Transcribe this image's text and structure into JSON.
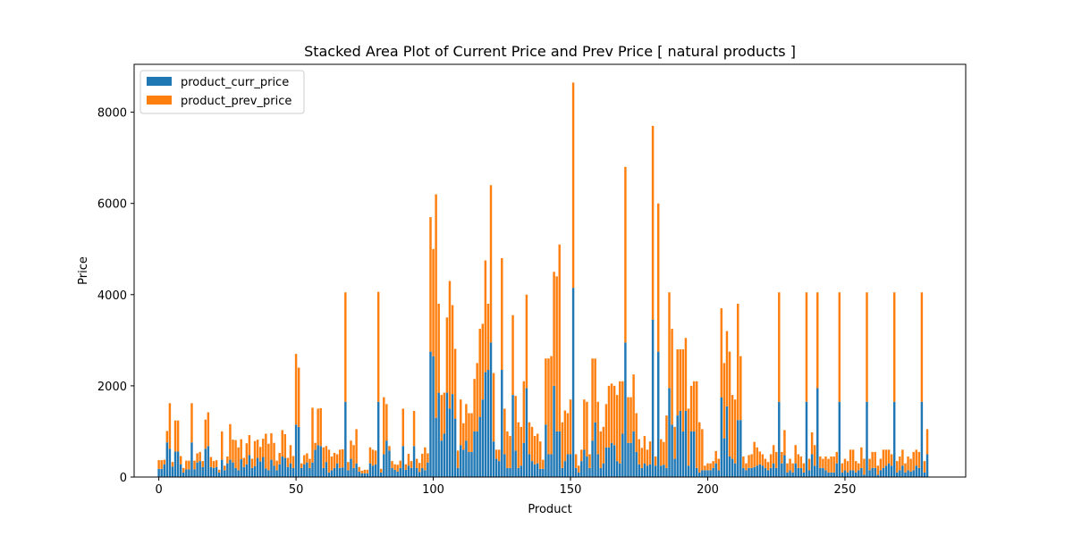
{
  "chart_data": {
    "type": "bar",
    "stacked": true,
    "title": "Stacked Area Plot of Current Price and Prev Price [ natural products ]",
    "xlabel": "Product",
    "ylabel": "Price",
    "xlim": [
      -9,
      294
    ],
    "ylim": [
      0,
      9050
    ],
    "xticks": [
      0,
      50,
      100,
      150,
      200,
      250
    ],
    "yticks": [
      0,
      2000,
      4000,
      6000,
      8000
    ],
    "grid": false,
    "legend": {
      "position": "top-left",
      "entries": [
        "product_curr_price",
        "product_prev_price"
      ]
    },
    "colors": {
      "product_curr_price": "#1f77b4",
      "product_prev_price": "#ff7f0e"
    },
    "x": [
      0,
      1,
      2,
      3,
      4,
      5,
      6,
      7,
      8,
      9,
      10,
      11,
      12,
      13,
      14,
      15,
      16,
      17,
      18,
      19,
      20,
      21,
      22,
      23,
      24,
      25,
      26,
      27,
      28,
      29,
      30,
      31,
      32,
      33,
      34,
      35,
      36,
      37,
      38,
      39,
      40,
      41,
      42,
      43,
      44,
      45,
      46,
      47,
      48,
      49,
      50,
      51,
      52,
      53,
      54,
      55,
      56,
      57,
      58,
      59,
      60,
      61,
      62,
      63,
      64,
      65,
      66,
      67,
      68,
      69,
      70,
      71,
      72,
      73,
      74,
      75,
      76,
      77,
      78,
      79,
      80,
      81,
      82,
      83,
      84,
      85,
      86,
      87,
      88,
      89,
      90,
      91,
      92,
      93,
      94,
      95,
      96,
      97,
      98,
      99,
      100,
      101,
      102,
      103,
      104,
      105,
      106,
      107,
      108,
      109,
      110,
      111,
      112,
      113,
      114,
      115,
      116,
      117,
      118,
      119,
      120,
      121,
      122,
      123,
      124,
      125,
      126,
      127,
      128,
      129,
      130,
      131,
      132,
      133,
      134,
      135,
      136,
      137,
      138,
      139,
      140,
      141,
      142,
      143,
      144,
      145,
      146,
      147,
      148,
      149,
      150,
      151,
      152,
      153,
      154,
      155,
      156,
      157,
      158,
      159,
      160,
      161,
      162,
      163,
      164,
      165,
      166,
      167,
      168,
      169,
      170,
      171,
      172,
      173,
      174,
      175,
      176,
      177,
      178,
      179,
      180,
      181,
      182,
      183,
      184,
      185,
      186,
      187,
      188,
      189,
      190,
      191,
      192,
      193,
      194,
      195,
      196,
      197,
      198,
      199,
      200,
      201,
      202,
      203,
      204,
      205,
      206,
      207,
      208,
      209,
      210,
      211,
      212,
      213,
      214,
      215,
      216,
      217,
      218,
      219,
      220,
      221,
      222,
      223,
      224,
      225,
      226,
      227,
      228,
      229,
      230,
      231,
      232,
      233,
      234,
      235,
      236,
      237,
      238,
      239,
      240,
      241,
      242,
      243,
      244,
      245,
      246,
      247,
      248,
      249,
      250,
      251,
      252,
      253,
      254,
      255,
      256,
      257,
      258,
      259,
      260,
      261,
      262,
      263,
      264,
      265,
      266,
      267,
      268,
      269,
      270,
      271,
      272,
      273,
      274,
      275,
      276,
      277,
      278,
      279,
      280
    ],
    "series": [
      {
        "name": "product_curr_price",
        "values": [
          180,
          180,
          280,
          760,
          620,
          230,
          560,
          560,
          280,
          100,
          170,
          170,
          760,
          170,
          320,
          350,
          220,
          620,
          680,
          220,
          200,
          220,
          100,
          380,
          150,
          300,
          380,
          320,
          200,
          150,
          390,
          220,
          280,
          480,
          200,
          240,
          420,
          340,
          440,
          190,
          150,
          380,
          250,
          150,
          280,
          450,
          420,
          220,
          300,
          200,
          1150,
          1100,
          200,
          280,
          320,
          200,
          320,
          600,
          700,
          680,
          200,
          330,
          100,
          150,
          200,
          300,
          200,
          210,
          1650,
          150,
          400,
          200,
          300,
          120,
          80,
          80,
          80,
          300,
          250,
          280,
          1650,
          100,
          500,
          800,
          580,
          200,
          160,
          120,
          200,
          680,
          160,
          250,
          200,
          680,
          200,
          110,
          200,
          150,
          320,
          2750,
          2650,
          1300,
          1850,
          800,
          950,
          1850,
          1500,
          1820,
          1280,
          200,
          700,
          600,
          800,
          550,
          550,
          1000,
          1000,
          1320,
          1700,
          2300,
          2350,
          2950,
          780,
          400,
          350,
          2350,
          500,
          200,
          200,
          1800,
          580,
          200,
          250,
          750,
          1950,
          500,
          350,
          280,
          300,
          180,
          180,
          1150,
          500,
          500,
          2000,
          1000,
          1000,
          200,
          350,
          500,
          500,
          4150,
          200,
          100,
          350,
          600,
          450,
          200,
          800,
          1200,
          500,
          200,
          300,
          650,
          650,
          750,
          700,
          350,
          300,
          950,
          2950,
          750,
          750,
          1000,
          550,
          280,
          200,
          300,
          250,
          280,
          3450,
          250,
          2750,
          250,
          270,
          200,
          1950,
          1150,
          400,
          1350,
          1450,
          1000,
          1450,
          250,
          1000,
          1000,
          200,
          100,
          150,
          150,
          150,
          150,
          200,
          300,
          150,
          1750,
          850,
          1550,
          450,
          400,
          300,
          1250,
          1250,
          200,
          150,
          200,
          200,
          220,
          250,
          280,
          250,
          200,
          150,
          200,
          300,
          200,
          1650,
          300,
          480,
          100,
          150,
          100,
          300,
          200,
          200,
          100,
          1650,
          150,
          500,
          250,
          1950,
          200,
          200,
          150,
          100,
          100,
          100,
          300,
          1650,
          100,
          150,
          100,
          150,
          150,
          100,
          150,
          200,
          50,
          1650,
          150,
          200,
          200,
          50,
          150,
          200,
          250,
          300,
          250,
          1650,
          100,
          150,
          250,
          100,
          150,
          120,
          150,
          250,
          200,
          1650,
          100,
          500
        ]
      },
      {
        "name": "product_prev_price",
        "values": [
          190,
          190,
          100,
          250,
          1000,
          100,
          680,
          680,
          180,
          100,
          190,
          190,
          860,
          190,
          200,
          200,
          130,
          640,
          740,
          220,
          150,
          150,
          60,
          620,
          100,
          150,
          780,
          500,
          610,
          500,
          440,
          200,
          460,
          440,
          200,
          550,
          400,
          320,
          400,
          760,
          580,
          580,
          500,
          210,
          250,
          580,
          520,
          200,
          400,
          260,
          1550,
          1300,
          100,
          200,
          200,
          200,
          1200,
          150,
          800,
          830,
          450,
          350,
          500,
          300,
          330,
          200,
          400,
          400,
          2400,
          180,
          400,
          500,
          750,
          100,
          60,
          80,
          80,
          350,
          350,
          300,
          2410,
          80,
          1250,
          800,
          100,
          150,
          120,
          150,
          160,
          820,
          120,
          260,
          150,
          770,
          200,
          200,
          310,
          500,
          200,
          2950,
          2350,
          4900,
          1950,
          1000,
          900,
          1650,
          2800,
          1950,
          1530,
          380,
          1000,
          580,
          800,
          850,
          850,
          1150,
          1500,
          1930,
          1660,
          2450,
          1450,
          3450,
          1500,
          200,
          250,
          2450,
          1000,
          800,
          700,
          1750,
          1200,
          1000,
          850,
          1350,
          2050,
          700,
          750,
          620,
          650,
          600,
          200,
          1450,
          2100,
          2150,
          2500,
          3400,
          4100,
          1000,
          1110,
          900,
          1200,
          4500,
          300,
          150,
          250,
          1100,
          1200,
          300,
          1800,
          1400,
          1150,
          800,
          800,
          950,
          1350,
          1300,
          1300,
          1450,
          1800,
          1150,
          3850,
          1000,
          1000,
          1250,
          850,
          550,
          440,
          600,
          350,
          500,
          4250,
          200,
          3250,
          580,
          500,
          1150,
          2100,
          2100,
          700,
          1450,
          1350,
          1800,
          1600,
          1250,
          1000,
          1100,
          1900,
          1100,
          900,
          100,
          150,
          150,
          150,
          270,
          250,
          1950,
          1650,
          1650,
          2300,
          1400,
          1400,
          2550,
          1400,
          250,
          150,
          280,
          300,
          550,
          400,
          280,
          250,
          200,
          180,
          300,
          400,
          350,
          2400,
          250,
          550,
          200,
          250,
          200,
          400,
          300,
          250,
          200,
          2400,
          250,
          480,
          450,
          2100,
          250,
          200,
          300,
          300,
          350,
          350,
          250,
          2400,
          200,
          250,
          250,
          450,
          450,
          250,
          150,
          450,
          350,
          2400,
          250,
          350,
          350,
          200,
          250,
          400,
          350,
          300,
          250,
          2400,
          250,
          300,
          350,
          200,
          300,
          280,
          400,
          350,
          350,
          2400,
          250,
          550
        ]
      }
    ]
  }
}
